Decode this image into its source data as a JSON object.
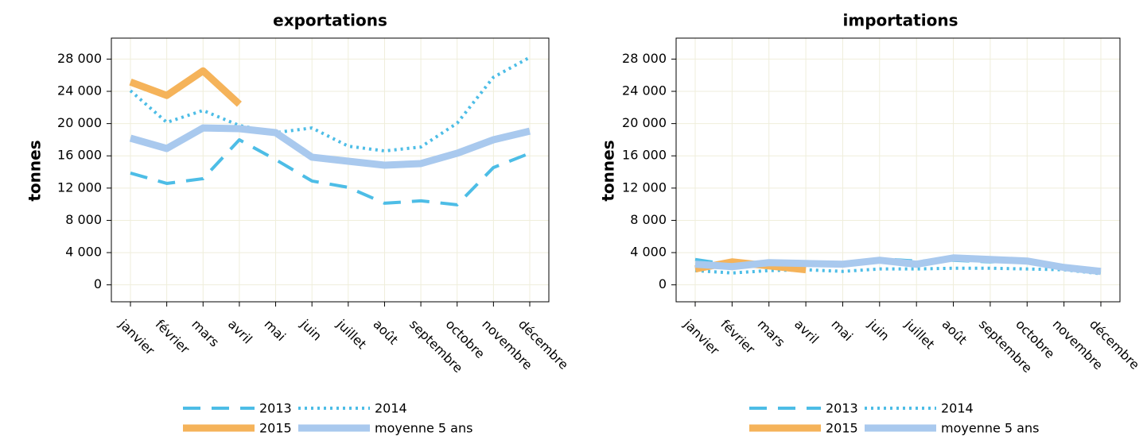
{
  "chart_data": [
    {
      "type": "line",
      "title": "exportations",
      "y_label": "tonnes",
      "categories": [
        "janvier",
        "février",
        "mars",
        "avril",
        "mai",
        "juin",
        "juillet",
        "août",
        "septembre",
        "octobre",
        "novembre",
        "décembre"
      ],
      "ylim": [
        -2100,
        30600
      ],
      "yticks": [
        0,
        {
          "value": 4000,
          "label": "4 000"
        },
        {
          "value": 8000,
          "label": "8 000"
        },
        {
          "value": 12000,
          "label": "12 000"
        },
        {
          "value": 16000,
          "label": "16 000"
        },
        {
          "value": 20000,
          "label": "20 000"
        },
        {
          "value": 24000,
          "label": "24 000"
        },
        {
          "value": 28000,
          "label": "28 000"
        }
      ],
      "grid": true,
      "series": [
        {
          "name": "2013",
          "color": "#4dbde6",
          "style": "dashed",
          "values": [
            13860,
            12580,
            13170,
            17990,
            15530,
            12880,
            12090,
            10120,
            10420,
            9930,
            14550,
            16320
          ]
        },
        {
          "name": "2014",
          "color": "#4dbde6",
          "style": "dotted",
          "values": [
            24080,
            20150,
            21630,
            19760,
            18880,
            19460,
            17200,
            16610,
            17100,
            20050,
            25750,
            28210
          ]
        },
        {
          "name": "2015",
          "color": "#f5b35a",
          "style": "solid",
          "values": [
            25160,
            23490,
            26540,
            22410,
            null,
            null,
            null,
            null,
            null,
            null,
            null,
            null
          ]
        },
        {
          "name": "moyenne 5 ans",
          "color": "#a9c9ee",
          "style": "solid",
          "values": [
            18190,
            16910,
            19460,
            19370,
            18880,
            15830,
            15330,
            14840,
            15040,
            16320,
            17990,
            19070
          ]
        }
      ]
    },
    {
      "type": "line",
      "title": "importations",
      "y_label": "tonnes",
      "categories": [
        "janvier",
        "février",
        "mars",
        "avril",
        "mai",
        "juin",
        "juillet",
        "août",
        "septembre",
        "octobre",
        "novembre",
        "décembre"
      ],
      "ylim": [
        -2100,
        30600
      ],
      "yticks": [
        0,
        {
          "value": 4000,
          "label": "4 000"
        },
        {
          "value": 8000,
          "label": "8 000"
        },
        {
          "value": 12000,
          "label": "12 000"
        },
        {
          "value": 16000,
          "label": "16 000"
        },
        {
          "value": 20000,
          "label": "20 000"
        },
        {
          "value": 24000,
          "label": "24 000"
        },
        {
          "value": 28000,
          "label": "28 000"
        }
      ],
      "grid": true,
      "series": [
        {
          "name": "2013",
          "color": "#4dbde6",
          "style": "dashed",
          "values": [
            3150,
            2460,
            2560,
            2560,
            2460,
            3240,
            2950,
            3050,
            2850,
            3050,
            1970,
            1570
          ]
        },
        {
          "name": "2014",
          "color": "#4dbde6",
          "style": "dotted",
          "values": [
            1770,
            1470,
            1770,
            1870,
            1670,
            1970,
            1970,
            2060,
            2060,
            1970,
            1870,
            1380
          ]
        },
        {
          "name": "2015",
          "color": "#f5b35a",
          "style": "solid",
          "values": [
            1970,
            2850,
            2360,
            1870,
            null,
            null,
            null,
            null,
            null,
            null,
            null,
            null
          ]
        },
        {
          "name": "moyenne 5 ans",
          "color": "#a9c9ee",
          "style": "solid",
          "values": [
            2560,
            2260,
            2750,
            2650,
            2560,
            3050,
            2560,
            3340,
            3150,
            2950,
            2160,
            1670
          ]
        }
      ]
    }
  ]
}
